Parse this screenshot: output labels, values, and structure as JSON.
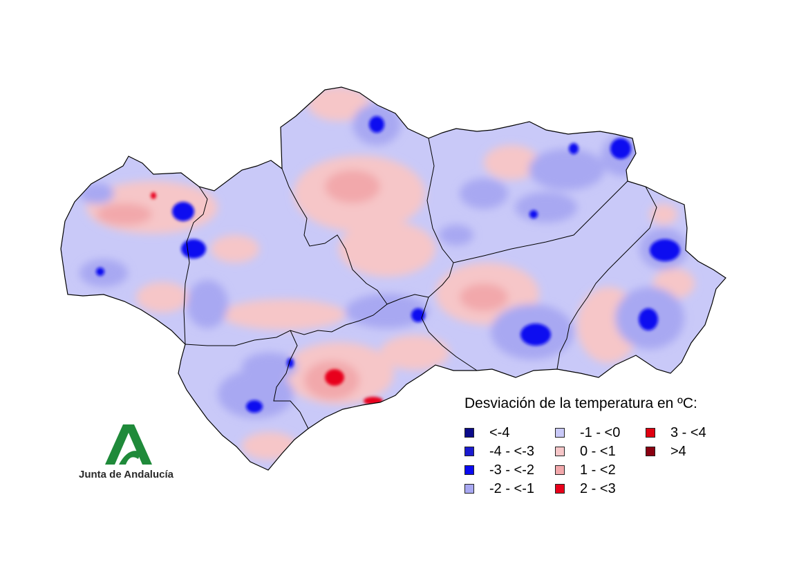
{
  "legend": {
    "title": "Desviación de la temperatura en ºC:",
    "items": [
      {
        "label": "<-4",
        "color": "#0b0b8a"
      },
      {
        "label": "-4 - <-3",
        "color": "#1a1ad0"
      },
      {
        "label": "-3 - <-2",
        "color": "#0a0af0"
      },
      {
        "label": "-2 - <-1",
        "color": "#a8a8f2"
      },
      {
        "label": "-1 - <0",
        "color": "#c9c9f8"
      },
      {
        "label": "0 - <1",
        "color": "#f6c6c8"
      },
      {
        "label": "1 - <2",
        "color": "#f2a8ab"
      },
      {
        "label": "2 - <3",
        "color": "#e8001a"
      },
      {
        "label": "3 - <4",
        "color": "#e00010"
      },
      {
        "label": ">4",
        "color": "#8a0010"
      }
    ]
  },
  "logo": {
    "text": "Junta de Andalucía",
    "color": "#1f8a3a"
  }
}
